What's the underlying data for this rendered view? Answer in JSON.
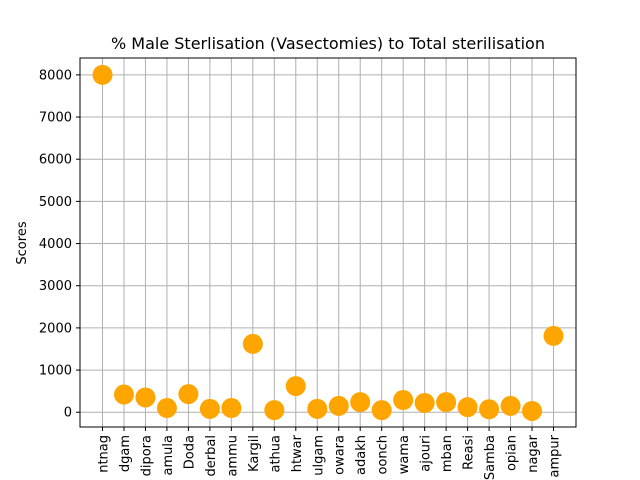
{
  "chart_data": {
    "type": "scatter",
    "title": "% Male Sterlisation (Vasectomies) to Total sterilisation",
    "xlabel": "",
    "ylabel": "Scores",
    "categories": [
      "ntnag",
      "dgam",
      "dipora",
      "amula",
      "Doda",
      "derbal",
      "ammu",
      "Kargil",
      "athua",
      "htwar",
      "ulgam",
      "owara",
      "adakh",
      "oonch",
      "wama",
      "ajouri",
      "mban",
      "Reasi",
      "Samba",
      "opian",
      "nagar",
      "ampur"
    ],
    "values": [
      8000,
      420,
      350,
      100,
      430,
      80,
      100,
      1620,
      50,
      620,
      80,
      150,
      240,
      50,
      290,
      220,
      240,
      120,
      70,
      150,
      30,
      1810
    ],
    "yticks": [
      0,
      1000,
      2000,
      3000,
      4000,
      5000,
      6000,
      7000,
      8000
    ],
    "ylim": [
      -350,
      8400
    ],
    "grid": true,
    "marker_color": "#ffa500"
  }
}
